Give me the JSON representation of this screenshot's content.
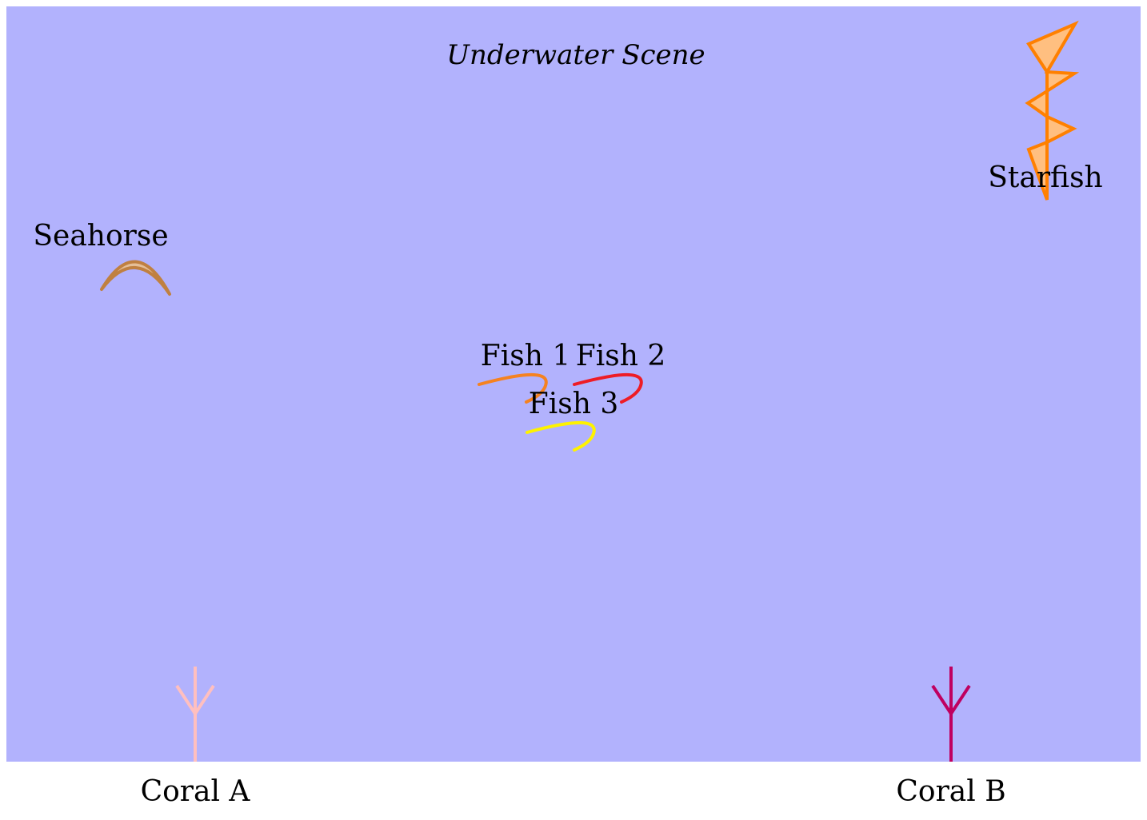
{
  "scene": {
    "title": "Underwater Scene",
    "water_color": "#b2b2fd"
  },
  "creatures": {
    "fish_1": {
      "label": "Fish 1",
      "color": "#f58220"
    },
    "fish_2": {
      "label": "Fish 2",
      "color": "#ee1c25"
    },
    "fish_3": {
      "label": "Fish 3",
      "color": "#fef200"
    },
    "seahorse": {
      "label": "Seahorse",
      "stroke": "#c08040",
      "fill": "#e5bf98"
    },
    "starfish": {
      "label": "Starfish",
      "stroke": "#ff8000",
      "fill": "#ffbf80"
    }
  },
  "corals": {
    "coral_a": {
      "label": "Coral A",
      "color": "#ffbfbf"
    },
    "coral_b": {
      "label": "Coral B",
      "color": "#bf0060"
    }
  }
}
